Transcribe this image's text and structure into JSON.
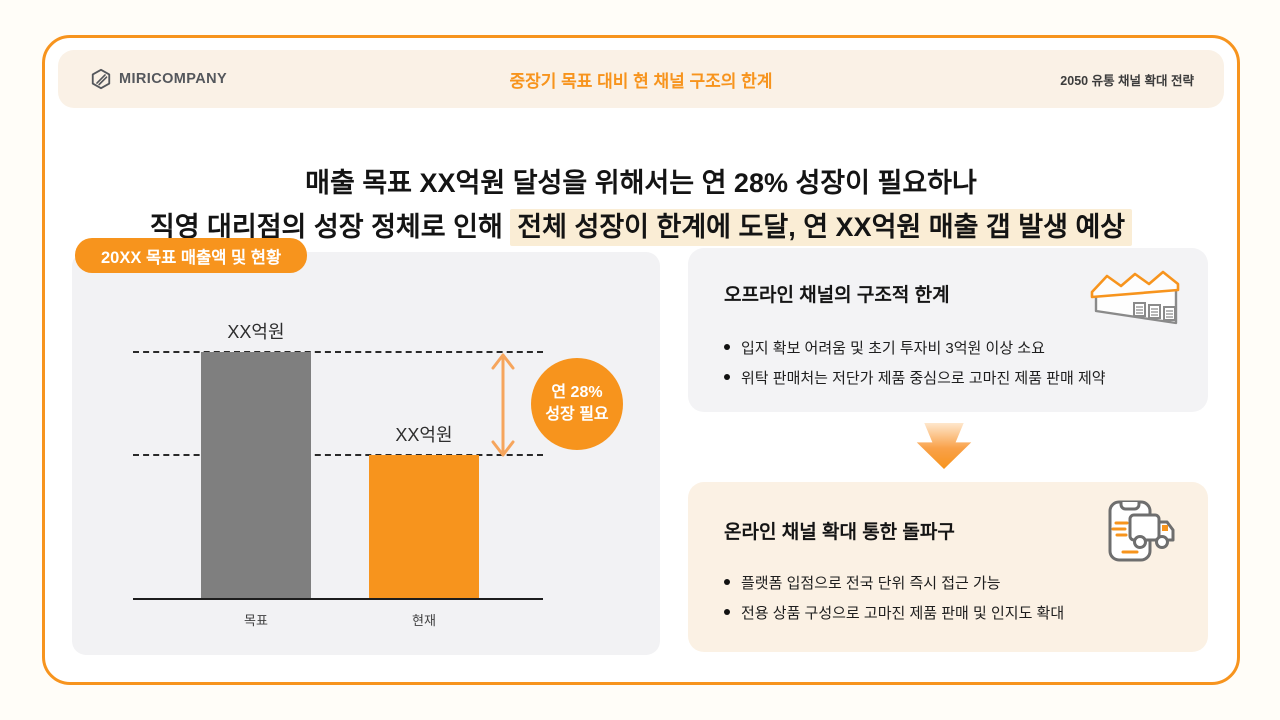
{
  "header": {
    "logo": "MIRICOMPANY",
    "title": "중장기 목표 대비 현 채널 구조의 한계",
    "deck_label": "2050 유통 채널 확대 전략"
  },
  "headline": {
    "line1": "매출 목표 XX억원 달성을 위해서는 연 28% 성장이 필요하나",
    "line2_prefix": "직영 대리점의 성장 정체로 인해 ",
    "line2_highlight": "전체 성장이 한계에 도달, 연 XX억원 매출 갭 발생 예상"
  },
  "chart_panel": {
    "badge": "20XX 목표 매출액 및 현황",
    "annotation_line1": "연 28%",
    "annotation_line2": "성장 필요"
  },
  "chart_data": {
    "type": "bar",
    "title": "20XX 목표 매출액 및 현황",
    "categories": [
      "목표",
      "현재"
    ],
    "values": [
      100,
      58
    ],
    "value_labels": [
      "XX억원",
      "XX억원"
    ],
    "bar_colors": [
      "#7F7F7F",
      "#F7941D"
    ],
    "unit": "억원",
    "annotation": "연 28% 성장 필요",
    "gridlines": "horizontal dashed line at top of each bar",
    "legend": "none",
    "ylim": [
      0,
      100
    ]
  },
  "offline_card": {
    "title": "오프라인 채널의 구조적 한계",
    "icon": "warehouse-icon",
    "bullets": [
      "입지 확보 어려움 및 초기 투자비 3억원 이상 소요",
      "위탁 판매처는 저단가 제품 중심으로 고마진 제품 판매 제약"
    ]
  },
  "online_card": {
    "title": "온라인 채널 확대 통한 돌파구",
    "icon": "phone-truck-icon",
    "bullets": [
      "플랫폼 입점으로 전국 단위 즉시 접근 가능",
      "전용 상품 구성으로 고마진 제품 판매 및 인지도 확대"
    ]
  },
  "colors": {
    "accent": "#F7941D",
    "accent_light": "#F6A55C",
    "card_border": "#F7941E",
    "highlight_bg": "#FAEDD5",
    "band_bg": "#FAF1E6",
    "panel_bg": "#F2F2F4",
    "offline_card_bg": "#F3F3F5",
    "online_card_bg": "#FBF1E4",
    "bar_gray": "#7F7F7F",
    "text_dark": "#1B1B1B"
  }
}
